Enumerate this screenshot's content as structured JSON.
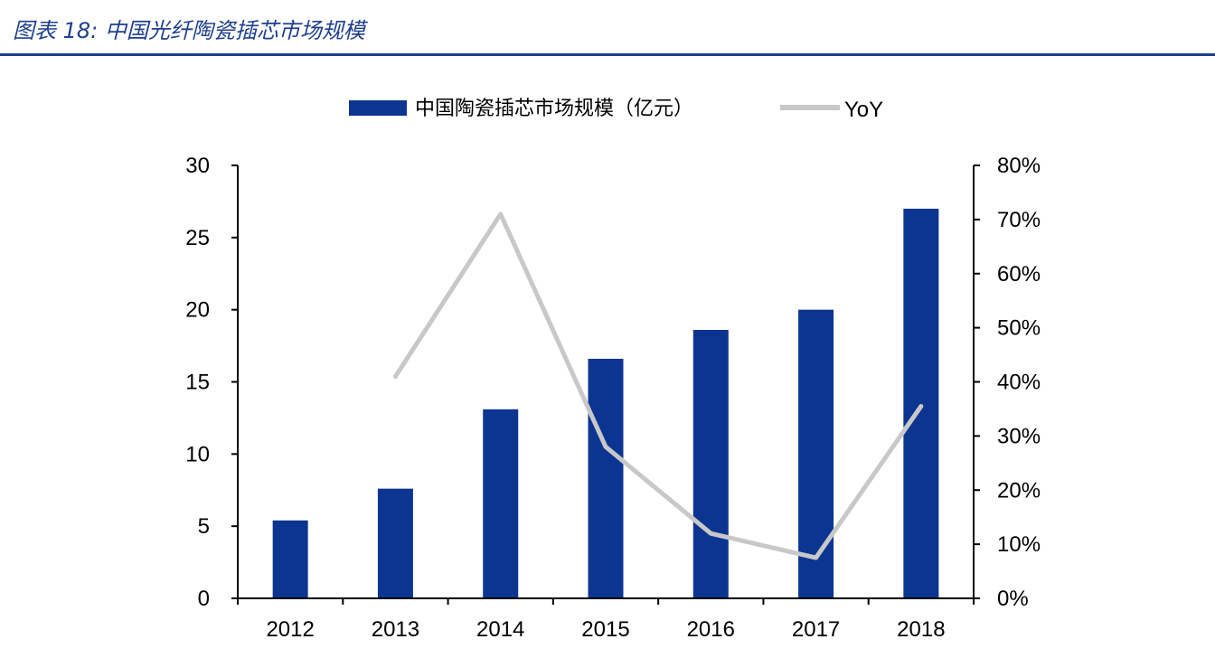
{
  "figure": {
    "title": "图表 18:  中国光纤陶瓷插芯市场规模"
  },
  "colors": {
    "bar": "#0c3591",
    "line": "#c8c8c8",
    "header_rule": "#1f3f8f",
    "axis": "#000000"
  },
  "chart_data": {
    "type": "bar",
    "title": "",
    "xlabel": "",
    "ylabel": "",
    "categories": [
      "2012",
      "2013",
      "2014",
      "2015",
      "2016",
      "2017",
      "2018"
    ],
    "series": [
      {
        "name": "中国陶瓷插芯市场规模（亿元）",
        "type": "bar",
        "axis": "left",
        "values": [
          5.4,
          7.6,
          13.1,
          16.6,
          18.6,
          20.0,
          27.0
        ]
      },
      {
        "name": "YoY",
        "type": "line",
        "axis": "right",
        "values": [
          null,
          0.41,
          0.71,
          0.28,
          0.12,
          0.075,
          0.355
        ]
      }
    ],
    "ylim_left": [
      0,
      30
    ],
    "yticks_left": [
      "0",
      "5",
      "10",
      "15",
      "20",
      "25",
      "30"
    ],
    "ylim_right": [
      0,
      0.8
    ],
    "yticks_right": [
      "0%",
      "10%",
      "20%",
      "30%",
      "40%",
      "50%",
      "60%",
      "70%",
      "80%"
    ],
    "grid": false,
    "legend_position": "top-center"
  }
}
